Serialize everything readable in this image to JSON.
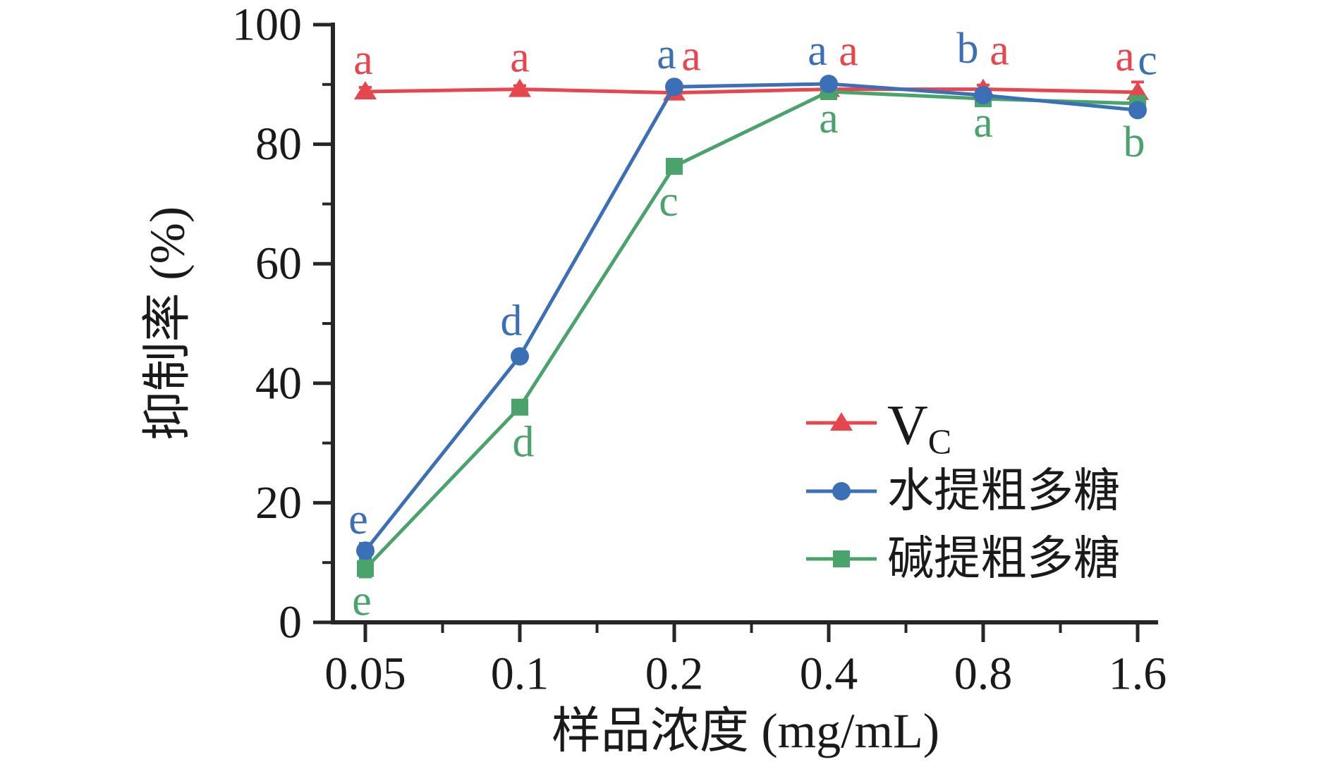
{
  "figure": {
    "background": "#ffffff",
    "axis_color": "#262626",
    "text_color": "#1a1a1a"
  },
  "chart_data": {
    "type": "line",
    "title": "",
    "xlabel": "样品浓度 (mg/mL)",
    "ylabel": "抑制率 (%)",
    "categories": [
      "0.05",
      "0.1",
      "0.2",
      "0.4",
      "0.8",
      "1.6"
    ],
    "ylim": [
      0,
      100
    ],
    "y_major_ticks": [
      "0",
      "20",
      "40",
      "60",
      "80",
      "100"
    ],
    "y_minor_ticks": [
      10,
      30,
      50,
      70,
      90
    ],
    "grid": "off",
    "legend_position": "inside-lower-right",
    "series": [
      {
        "name": "Vc",
        "legend_main": "V",
        "legend_sub": "C",
        "color": "#e8464e",
        "marker": "triangle",
        "values": [
          88.8,
          89.2,
          88.6,
          89.2,
          89.2,
          88.7
        ],
        "errors": [
          0.7,
          0.6,
          0.7,
          0.6,
          0.7,
          1.7
        ],
        "sig_letters": [
          "a",
          "a",
          "a",
          "a",
          "a",
          "a"
        ],
        "letter_offsets": [
          [
            -3,
            -45
          ],
          [
            0,
            -45
          ],
          [
            24,
            -52
          ],
          [
            28,
            -54
          ],
          [
            23,
            -55
          ],
          [
            -18,
            -51
          ]
        ]
      },
      {
        "name": "水提粗多糖",
        "legend_main": "水提粗多糖",
        "legend_sub": "",
        "color": "#3b6fb6",
        "marker": "circle",
        "values": [
          12.0,
          44.5,
          89.6,
          90.1,
          88.2,
          85.7
        ],
        "errors": [
          1.2,
          0.9,
          0.8,
          0.6,
          0.6,
          0.9
        ],
        "sig_letters": [
          "e",
          "d",
          "a",
          "a",
          "b",
          "c"
        ],
        "letter_offsets": [
          [
            -10,
            -44
          ],
          [
            -12,
            -50
          ],
          [
            -11,
            -46
          ],
          [
            -16,
            -47
          ],
          [
            -22,
            -66
          ],
          [
            14,
            -71
          ]
        ]
      },
      {
        "name": "碱提粗多糖",
        "legend_main": "碱提粗多糖",
        "legend_sub": "",
        "color": "#4ba36c",
        "marker": "square",
        "values": [
          9.0,
          36.0,
          76.3,
          88.8,
          87.6,
          86.8
        ],
        "errors": [
          1.4,
          1.1,
          0.9,
          0.7,
          0.6,
          0.7
        ],
        "sig_letters": [
          "e",
          "d",
          "c",
          "a",
          "a",
          "b"
        ],
        "letter_offsets": [
          [
            -5,
            46
          ],
          [
            5,
            50
          ],
          [
            -8,
            50
          ],
          [
            0,
            38
          ],
          [
            0,
            34
          ],
          [
            -5,
            55
          ]
        ]
      }
    ]
  }
}
